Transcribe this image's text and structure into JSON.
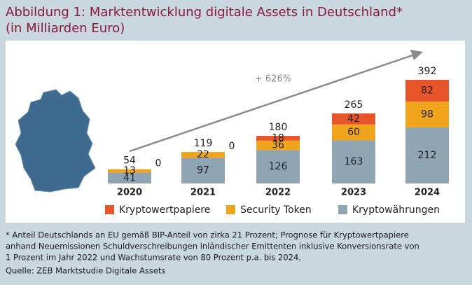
{
  "chart_data": {
    "type": "stacked-bar",
    "title": "Abbildung 1: Marktentwicklung digitale Assets in Deutschland*",
    "subtitle": "(in Milliarden Euro)",
    "annotation": "+ 626%",
    "categories": [
      "2020",
      "2021",
      "2022",
      "2023",
      "2024"
    ],
    "series": [
      {
        "name": "Kryptowährungen",
        "color": "#8fa5b3",
        "values": [
          41,
          97,
          126,
          163,
          212
        ]
      },
      {
        "name": "Security Token",
        "color": "#f0a41c",
        "values": [
          13,
          22,
          36,
          60,
          98
        ]
      },
      {
        "name": "Kryptowertpapiere",
        "color": "#e8552a",
        "values": [
          0,
          0,
          18,
          42,
          82
        ]
      }
    ],
    "totals": [
      54,
      119,
      180,
      265,
      392
    ],
    "footnote": [
      "* Anteil Deutschlands an EU gemäß BIP-Anteil von zirka 21 Prozent; Prognose für Kryptowertpapiere",
      "anhand Neuemissionen Schuldverschreibungen inländischer Emittenten inklusive Konversionsrate von",
      "1 Prozent im Jahr 2022 und Wachstumsrate von 80 Prozent p.a. bis 2024."
    ],
    "source": "Quelle: ZEB Marktstudie Digitale Assets"
  }
}
